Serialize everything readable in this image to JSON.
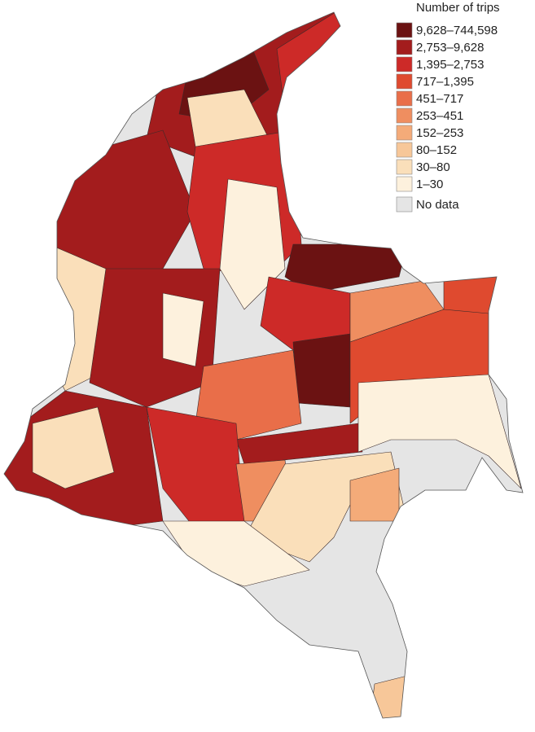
{
  "legend": {
    "title": "Number of trips",
    "items": [
      {
        "label": "9,628–744,598",
        "color": "#6b1212"
      },
      {
        "label": "2,753–9,628",
        "color": "#a31c1d"
      },
      {
        "label": "1,395–2,753",
        "color": "#cd2a28"
      },
      {
        "label": "717–1,395",
        "color": "#df4a2f"
      },
      {
        "label": "451–717",
        "color": "#e96e49"
      },
      {
        "label": "253–451",
        "color": "#ef8e60"
      },
      {
        "label": "152–253",
        "color": "#f4ab79"
      },
      {
        "label": "80–152",
        "color": "#f7c799"
      },
      {
        "label": "30–80",
        "color": "#fadfba"
      },
      {
        "label": "1–30",
        "color": "#fdf1dd"
      }
    ],
    "no_data": {
      "label": "No data",
      "color": "#e5e5e5"
    }
  }
}
